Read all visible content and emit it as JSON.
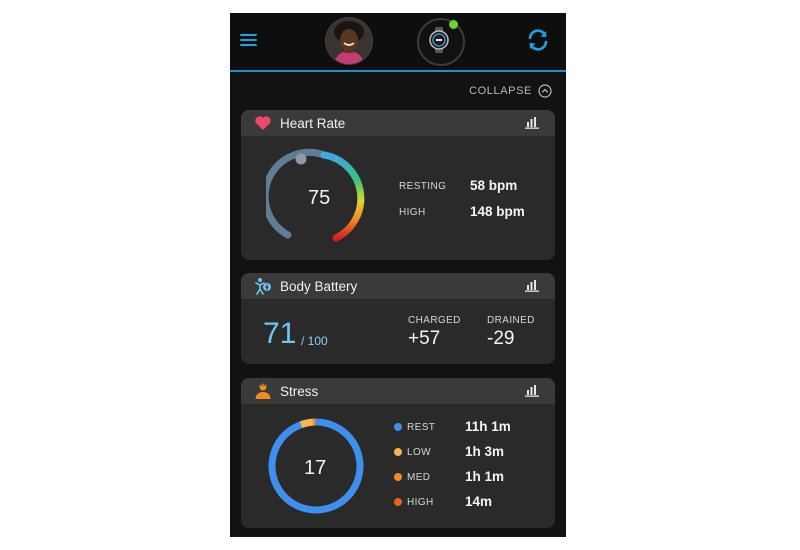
{
  "header": {
    "menu_icon": "hamburger-menu-icon",
    "device_icon": "watch-icon",
    "device_status_color": "#6bd42e",
    "sync_icon": "sync-icon",
    "accent_color": "#1ea2e6"
  },
  "collapse": {
    "label": "COLLAPSE",
    "icon": "chevron-up-icon"
  },
  "heart_rate": {
    "title": "Heart Rate",
    "icon": "heart-icon",
    "icon_color": "#f0466e",
    "current": "75",
    "resting_label": "RESTING",
    "resting_value": "58 bpm",
    "high_label": "HIGH",
    "high_value": "148 bpm"
  },
  "body_battery": {
    "title": "Body Battery",
    "icon": "body-battery-icon",
    "icon_color": "#6dc6f0",
    "value": "71",
    "max": "/ 100",
    "charged_label": "CHARGED",
    "charged_value": "+57",
    "drained_label": "DRAINED",
    "drained_value": "-29"
  },
  "stress": {
    "title": "Stress",
    "icon": "stress-person-icon",
    "icon_color": "#f08a24",
    "value": "17",
    "legend": [
      {
        "label": "REST",
        "value": "11h 1m",
        "color": "#3f8fef"
      },
      {
        "label": "LOW",
        "value": "1h 3m",
        "color": "#f7b555"
      },
      {
        "label": "MED",
        "value": "1h 1m",
        "color": "#f08a24"
      },
      {
        "label": "HIGH",
        "value": "14m",
        "color": "#e4661b"
      }
    ]
  }
}
